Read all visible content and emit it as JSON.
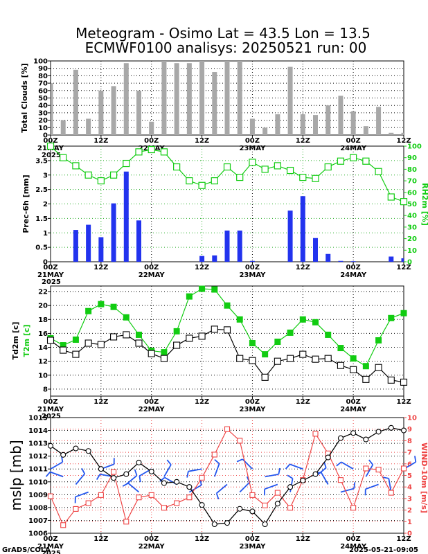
{
  "title_line1": "Meteogram - Osimo Lat = 43.5 Lon = 13.5",
  "title_line2": "ECMWF0100 analisys: 20250521 run: 00",
  "footer_left": "GrADS/COLA",
  "footer_right": "2025-05-21-09:05",
  "time_axis": {
    "labels": [
      "00Z",
      "12Z",
      "00Z",
      "12Z",
      "00Z",
      "12Z",
      "00Z",
      "12Z"
    ],
    "date_labels": [
      "21MAY",
      "22MAY",
      "23MAY",
      "24MAY"
    ],
    "year_label": "2025",
    "t_max": 84
  },
  "colors": {
    "bar_gray": "#a8a8a8",
    "bar_blue": "#2233ee",
    "green": "#11cc11",
    "black": "#000000",
    "red": "#ee4444",
    "wind_blue": "#2255ee"
  },
  "chart_data": [
    {
      "type": "bar",
      "name": "clouds",
      "ylabel": "Total Clouds [%]",
      "ylim": [
        0,
        100
      ],
      "yticks": [
        "0",
        "10",
        "20",
        "30",
        "40",
        "50",
        "60",
        "70",
        "80",
        "90",
        "100"
      ],
      "x": [
        0,
        3,
        6,
        9,
        12,
        15,
        18,
        21,
        24,
        27,
        30,
        33,
        36,
        39,
        42,
        45,
        48,
        51,
        54,
        57,
        60,
        63,
        66,
        69,
        72,
        75,
        78,
        81,
        84
      ],
      "values": [
        70,
        20,
        88,
        22,
        60,
        66,
        97,
        60,
        18,
        100,
        97,
        97,
        100,
        85,
        100,
        100,
        22,
        10,
        28,
        92,
        28,
        27,
        40,
        53,
        32,
        12,
        38,
        3,
        3
      ]
    },
    {
      "type": "bar+line",
      "name": "precip",
      "ylabel": "Prec-6h [mm]",
      "ylabel_right": "RH2m [%]",
      "ylim": [
        0,
        4
      ],
      "yticks": [
        "0",
        "0.5",
        "1",
        "1.5",
        "2",
        "2.5",
        "3",
        "3.5"
      ],
      "ylim_right": [
        0,
        100
      ],
      "yticks_right": [
        "0",
        "10",
        "20",
        "30",
        "40",
        "50",
        "60",
        "70",
        "80",
        "90",
        "100"
      ],
      "precip": {
        "x": [
          6,
          9,
          12,
          15,
          18,
          21,
          36,
          39,
          42,
          45,
          48,
          57,
          60,
          63,
          66,
          69,
          72,
          81,
          84
        ],
        "values": [
          1.1,
          1.28,
          0.85,
          2.02,
          3.12,
          1.43,
          0.2,
          0.22,
          1.08,
          1.08,
          0.03,
          1.77,
          2.27,
          0.82,
          0.27,
          0.03,
          0.02,
          0.18,
          0.12
        ]
      },
      "rh": {
        "x": [
          0,
          3,
          6,
          9,
          12,
          15,
          18,
          21,
          24,
          27,
          30,
          33,
          36,
          39,
          42,
          45,
          48,
          51,
          54,
          57,
          60,
          63,
          66,
          69,
          72,
          75,
          78,
          81,
          84
        ],
        "values": [
          100,
          90,
          83,
          75,
          70,
          75,
          85,
          95,
          97,
          95,
          82,
          70,
          66,
          70,
          82,
          73,
          86,
          80,
          83,
          79,
          73,
          72,
          82,
          87,
          90,
          87,
          78,
          56,
          52
        ]
      }
    },
    {
      "type": "line",
      "name": "temperature",
      "ylabel_black": "Td2m [c]",
      "ylabel_green": "T2m [c]",
      "ylim": [
        7,
        22.8
      ],
      "yticks": [
        "8",
        "10",
        "12",
        "14",
        "16",
        "18",
        "20",
        "22"
      ],
      "t2m": {
        "x": [
          0,
          3,
          6,
          9,
          12,
          15,
          18,
          21,
          24,
          27,
          30,
          33,
          36,
          39,
          42,
          45,
          48,
          51,
          54,
          57,
          60,
          63,
          66,
          69,
          72,
          75,
          78,
          81,
          84
        ],
        "values": [
          15.3,
          14.3,
          15.1,
          19.2,
          20.2,
          19.8,
          18.3,
          15.8,
          13.5,
          13.3,
          16.3,
          21.3,
          22.4,
          22.3,
          20.0,
          18.0,
          14.6,
          13.0,
          14.8,
          16.1,
          18.0,
          17.6,
          15.8,
          13.9,
          12.4,
          11.3,
          15.0,
          18.2,
          18.9
        ]
      },
      "td2m": {
        "x": [
          0,
          3,
          6,
          9,
          12,
          15,
          18,
          21,
          24,
          27,
          30,
          33,
          36,
          39,
          42,
          45,
          48,
          51,
          54,
          57,
          60,
          63,
          66,
          69,
          72,
          75,
          78,
          81,
          84
        ],
        "values": [
          15.0,
          13.6,
          13.0,
          14.6,
          14.4,
          15.5,
          15.8,
          14.6,
          13.1,
          12.4,
          14.3,
          15.3,
          15.6,
          16.6,
          16.5,
          12.4,
          12.1,
          9.7,
          12.0,
          12.4,
          13.0,
          12.3,
          12.4,
          11.4,
          10.8,
          9.4,
          11.1,
          9.3,
          9.0
        ]
      }
    },
    {
      "type": "line+barbs",
      "name": "pressure_wind",
      "ylabel": "mslp [mb]",
      "ylabel_right": "WIND-10m [m/s]",
      "ylim": [
        1006,
        1015
      ],
      "yticks": [
        "1006",
        "1007",
        "1008",
        "1009",
        "1010",
        "1011",
        "1012",
        "1013",
        "1014",
        "1015"
      ],
      "ylim_right": [
        0,
        10
      ],
      "yticks_right": [
        "0",
        "1",
        "2",
        "3",
        "4",
        "5",
        "6",
        "7",
        "8",
        "9",
        "10"
      ],
      "mslp": {
        "x": [
          0,
          3,
          6,
          9,
          12,
          15,
          18,
          21,
          24,
          27,
          30,
          33,
          36,
          39,
          42,
          45,
          48,
          51,
          54,
          57,
          60,
          63,
          66,
          69,
          72,
          75,
          78,
          81,
          84
        ],
        "values": [
          1012.8,
          1012.1,
          1012.6,
          1012.4,
          1011.0,
          1010.3,
          1010.6,
          1011.5,
          1010.8,
          1009.9,
          1010.0,
          1009.6,
          1008.2,
          1006.7,
          1006.8,
          1007.9,
          1007.7,
          1006.7,
          1008.3,
          1009.6,
          1010.1,
          1010.6,
          1011.9,
          1013.4,
          1013.8,
          1013.3,
          1013.9,
          1014.2,
          1014.0
        ]
      },
      "wind": {
        "x": [
          0,
          3,
          6,
          9,
          12,
          15,
          18,
          21,
          24,
          27,
          30,
          33,
          36,
          39,
          42,
          45,
          48,
          51,
          54,
          57,
          60,
          63,
          66,
          69,
          72,
          75,
          78,
          81,
          84
        ],
        "values": [
          3.2,
          0.7,
          2.1,
          2.6,
          3.3,
          5.3,
          1.0,
          3.1,
          3.3,
          2.2,
          2.6,
          3.1,
          4.8,
          6.8,
          9.0,
          8.0,
          3.3,
          2.4,
          3.5,
          2.2,
          4.6,
          8.6,
          6.9,
          4.6,
          2.2,
          5.6,
          5.5,
          3.5,
          5.6
        ]
      }
    }
  ]
}
